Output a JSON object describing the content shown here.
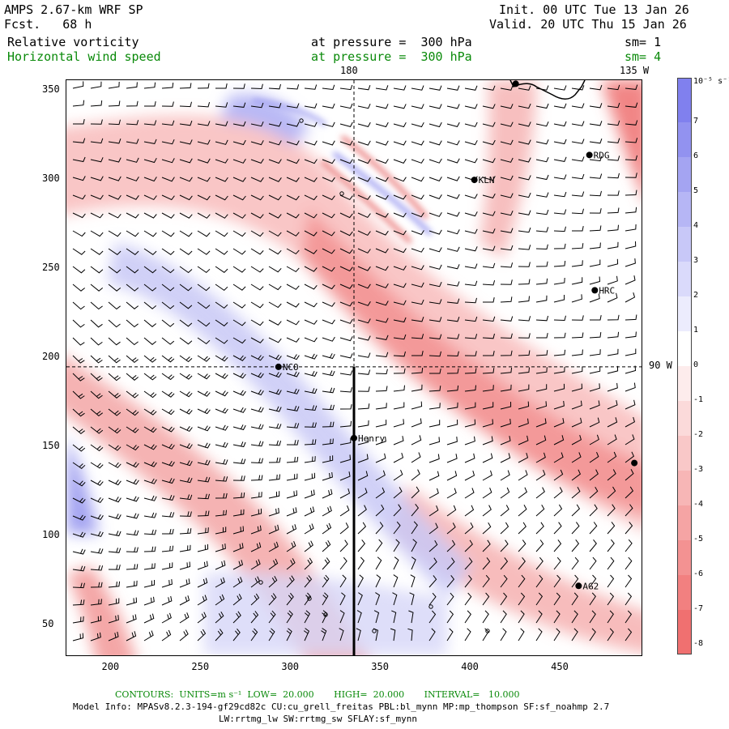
{
  "header": {
    "title": "AMPS 2.67-km WRF SP",
    "forecast": "Fcst.   68 h",
    "init": "Init. 00 UTC Tue 13 Jan 26",
    "valid": "Valid. 20 UTC Thu 15 Jan 26",
    "field1": {
      "name": "Relative vorticity",
      "level": "at pressure =  300 hPa",
      "smooth": "sm= 1"
    },
    "field2": {
      "name": "Horizontal wind speed",
      "level": "at pressure =  300 hPa",
      "smooth": "sm= 4"
    }
  },
  "map": {
    "x_ticks": [
      "200",
      "250",
      "300",
      "350",
      "400",
      "450"
    ],
    "x_tick_values": [
      200,
      250,
      300,
      350,
      400,
      450
    ],
    "y_ticks": [
      "350",
      "300",
      "250",
      "200",
      "150",
      "100",
      "50"
    ],
    "y_tick_values": [
      350,
      300,
      250,
      200,
      150,
      100,
      50
    ],
    "x_range": [
      175,
      495
    ],
    "y_range": [
      33,
      356
    ],
    "meridian_labels": {
      "top_180": "180",
      "top_135w": "135 W",
      "right_90w": "90 W"
    },
    "stations": [
      {
        "name": "RDG",
        "x": 466,
        "y": 314
      },
      {
        "name": "KLN",
        "x": 402,
        "y": 300
      },
      {
        "name": "HRC",
        "x": 469,
        "y": 238
      },
      {
        "name": "NCO",
        "x": 293,
        "y": 195
      },
      {
        "name": "Henry",
        "x": 335,
        "y": 155
      },
      {
        "name": "AG2",
        "x": 460,
        "y": 72
      },
      {
        "name": "",
        "x": 425,
        "y": 354
      },
      {
        "name": "",
        "x": 491,
        "y": 141
      }
    ],
    "cross_section": {
      "x": 335,
      "y_from": 33,
      "y_to": 195
    },
    "colors": {
      "positive": "#8080ee",
      "negative": "#f07070",
      "barb": "#000000"
    }
  },
  "colorbar": {
    "unit_label": "10⁻⁵ s⁻¹",
    "labels": [
      "7",
      "6",
      "5",
      "4",
      "3",
      "2",
      "1",
      "0",
      "-1",
      "-2",
      "-3",
      "-4",
      "-5",
      "-6",
      "-7",
      "-8"
    ],
    "colors": [
      "#8080ee",
      "#9292f0",
      "#a4a4f2",
      "#b6b6f5",
      "#c8c8f8",
      "#dadafb",
      "#ececfd",
      "#ffffff",
      "#fdecec",
      "#fbdada",
      "#f9c8c8",
      "#f7b6b6",
      "#f5a4a4",
      "#f39292",
      "#f28080",
      "#f07070"
    ]
  },
  "footer": {
    "contours": "CONTOURS:  UNITS=m s⁻¹  LOW=  20.000       HIGH=  20.000       INTERVAL=   10.000",
    "model_info": "Model Info: MPASv8.2.3-194-gf29cd82c CU:cu_grell_freitas PBL:bl_mynn MP:mp_thompson SF:sf_noahmp 2.7",
    "model_info2": "LW:rrtmg_lw SW:rrtmg_sw SFLAY:sf_mynn"
  }
}
